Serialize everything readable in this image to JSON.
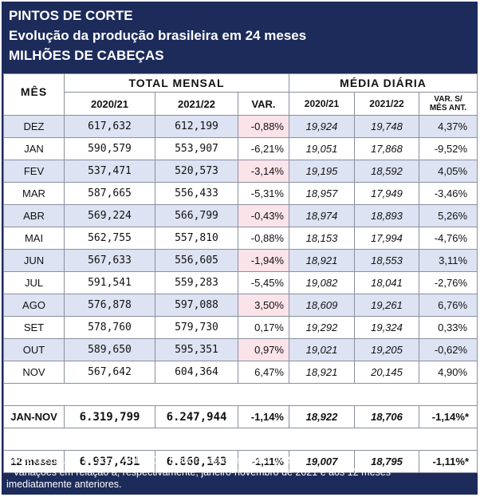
{
  "header": {
    "title": "PINTOS DE CORTE",
    "subtitle": "Evolução da produção brasileira em 24 meses",
    "unit": "MILHÕES DE CABEÇAS"
  },
  "columns": {
    "month": "MÊS",
    "total_group": "TOTAL MENSAL",
    "daily_group": "MÉDIA DIÁRIA",
    "year1": "2020/21",
    "year2": "2021/22",
    "var": "VAR.",
    "var_prev_line1": "VAR. S/",
    "var_prev_line2": "MÊS ANT."
  },
  "rows": [
    {
      "month": "DEZ",
      "total_2021": "617,632",
      "total_2122": "612,199",
      "var": "-0,88%",
      "daily_2021": "19,924",
      "daily_2122": "19,748",
      "var_prev": "4,37%"
    },
    {
      "month": "JAN",
      "total_2021": "590,579",
      "total_2122": "553,907",
      "var": "-6,21%",
      "daily_2021": "19,051",
      "daily_2122": "17,868",
      "var_prev": "-9,52%"
    },
    {
      "month": "FEV",
      "total_2021": "537,471",
      "total_2122": "520,573",
      "var": "-3,14%",
      "daily_2021": "19,195",
      "daily_2122": "18,592",
      "var_prev": "4,05%"
    },
    {
      "month": "MAR",
      "total_2021": "587,665",
      "total_2122": "556,433",
      "var": "-5,31%",
      "daily_2021": "18,957",
      "daily_2122": "17,949",
      "var_prev": "-3,46%"
    },
    {
      "month": "ABR",
      "total_2021": "569,224",
      "total_2122": "566,799",
      "var": "-0,43%",
      "daily_2021": "18,974",
      "daily_2122": "18,893",
      "var_prev": "5,26%"
    },
    {
      "month": "MAI",
      "total_2021": "562,755",
      "total_2122": "557,810",
      "var": "-0,88%",
      "daily_2021": "18,153",
      "daily_2122": "17,994",
      "var_prev": "-4,76%"
    },
    {
      "month": "JUN",
      "total_2021": "567,633",
      "total_2122": "556,605",
      "var": "-1,94%",
      "daily_2021": "18,921",
      "daily_2122": "18,553",
      "var_prev": "3,11%"
    },
    {
      "month": "JUL",
      "total_2021": "591,541",
      "total_2122": "559,283",
      "var": "-5,45%",
      "daily_2021": "19,082",
      "daily_2122": "18,041",
      "var_prev": "-2,76%"
    },
    {
      "month": "AGO",
      "total_2021": "576,878",
      "total_2122": "597,088",
      "var": "3,50%",
      "daily_2021": "18,609",
      "daily_2122": "19,261",
      "var_prev": "6,76%"
    },
    {
      "month": "SET",
      "total_2021": "578,760",
      "total_2122": "579,730",
      "var": "0,17%",
      "daily_2021": "19,292",
      "daily_2122": "19,324",
      "var_prev": "0,33%"
    },
    {
      "month": "OUT",
      "total_2021": "589,650",
      "total_2122": "595,351",
      "var": "0,97%",
      "daily_2021": "19,021",
      "daily_2122": "19,205",
      "var_prev": "-0,62%"
    },
    {
      "month": "NOV",
      "total_2021": "567,642",
      "total_2122": "604,364",
      "var": "6,47%",
      "daily_2021": "18,921",
      "daily_2122": "20,145",
      "var_prev": "4,90%"
    }
  ],
  "summary": [
    {
      "month": "JAN-NOV",
      "total_2021": "6.319,799",
      "total_2122": "6.247,944",
      "var": "-1,14%",
      "daily_2021": "18,922",
      "daily_2122": "18,706",
      "var_prev": "-1,14%*"
    },
    {
      "month": "12 meses",
      "total_2021": "6.937,431",
      "total_2122": "6.860,143",
      "var": "-1,11%",
      "daily_2021": "19,007",
      "daily_2122": "18,795",
      "var_prev": "-1,11%*"
    }
  ],
  "footer": {
    "source": "Fonte dos dados básicos: APINCO - Elaboração e análises: AVISITE",
    "note_line1": "* Variações em relação a, respectivamente, janeiro-novembro de 2021 e aos  12 meses",
    "note_line2": "imediatamente anteriores."
  },
  "colors": {
    "frame": "#1c2b5a",
    "row_tint": "#dde3f2",
    "var_tint": "#fbe3ea",
    "negative": "#d40000"
  }
}
